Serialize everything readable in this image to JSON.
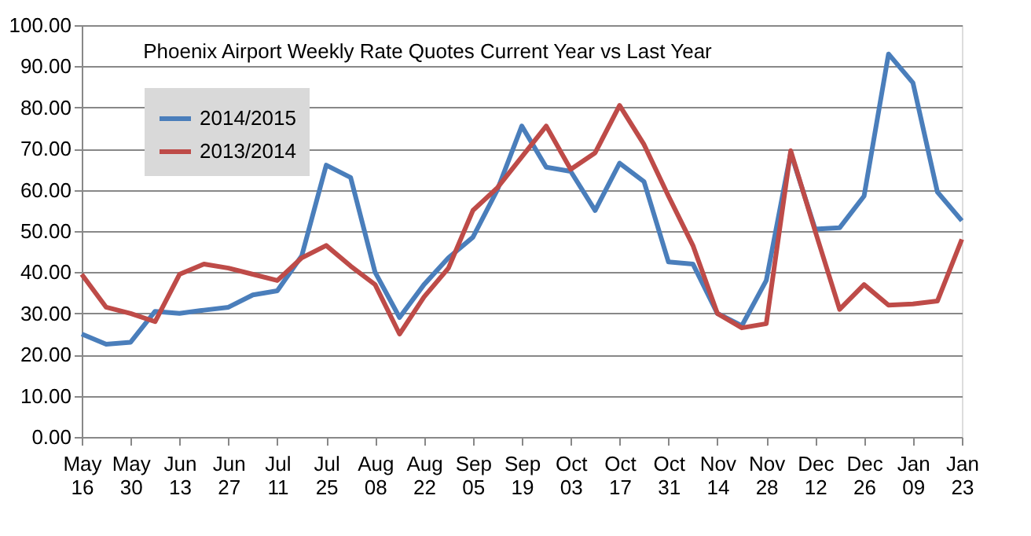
{
  "chart_data": {
    "type": "line",
    "title": "Phoenix Airport Weekly Rate Quotes Current Year vs Last Year",
    "categories": [
      "May 16",
      null,
      "May 30",
      null,
      "Jun 13",
      null,
      "Jun 27",
      null,
      "Jul 11",
      null,
      "Jul 25",
      null,
      "Aug 08",
      null,
      "Aug 22",
      null,
      "Sep 05",
      null,
      "Sep 19",
      null,
      "Oct 03",
      null,
      "Oct 17",
      null,
      "Oct 31",
      null,
      "Nov 14",
      null,
      "Nov 28",
      null,
      "Dec 12",
      null,
      "Dec 26",
      null,
      "Jan 09",
      null,
      "Jan 23"
    ],
    "series": [
      {
        "name": "2014/2015",
        "color": "#4a7ebb",
        "values": [
          25,
          22.5,
          23,
          30.5,
          30,
          30.8,
          31.5,
          34.5,
          35.5,
          44,
          66,
          63,
          40,
          29,
          37,
          43.5,
          48.5,
          60,
          75.5,
          65.5,
          64.5,
          55,
          66.5,
          62,
          42.5,
          42,
          30,
          27,
          38,
          69,
          50.5,
          50.8,
          58.5,
          93,
          86,
          59.5,
          52.5
        ]
      },
      {
        "name": "2013/2014",
        "color": "#be4b48",
        "values": [
          39.5,
          31.5,
          30,
          28,
          39.5,
          42,
          41,
          39.5,
          38,
          43.5,
          46.5,
          41.5,
          37,
          25,
          34,
          41,
          55,
          60.5,
          68,
          75.5,
          65,
          69,
          80.5,
          71,
          58.5,
          46.5,
          30,
          26.5,
          27.5,
          69.5,
          50,
          31,
          37,
          32,
          32.3,
          33,
          48
        ]
      }
    ],
    "ylim": [
      0,
      100
    ],
    "yticks": [
      {
        "value": 0,
        "label": "0.00"
      },
      {
        "value": 10,
        "label": "10.00"
      },
      {
        "value": 20,
        "label": "20.00"
      },
      {
        "value": 30,
        "label": "30.00"
      },
      {
        "value": 40,
        "label": "40.00"
      },
      {
        "value": 50,
        "label": "50.00"
      },
      {
        "value": 60,
        "label": "60.00"
      },
      {
        "value": 70,
        "label": "70.00"
      },
      {
        "value": 80,
        "label": "80.00"
      },
      {
        "value": 90,
        "label": "90.00"
      },
      {
        "value": 100,
        "label": "100.00"
      }
    ],
    "grid": "y",
    "legend": "top left",
    "marker": "none",
    "line_style": "solid"
  }
}
